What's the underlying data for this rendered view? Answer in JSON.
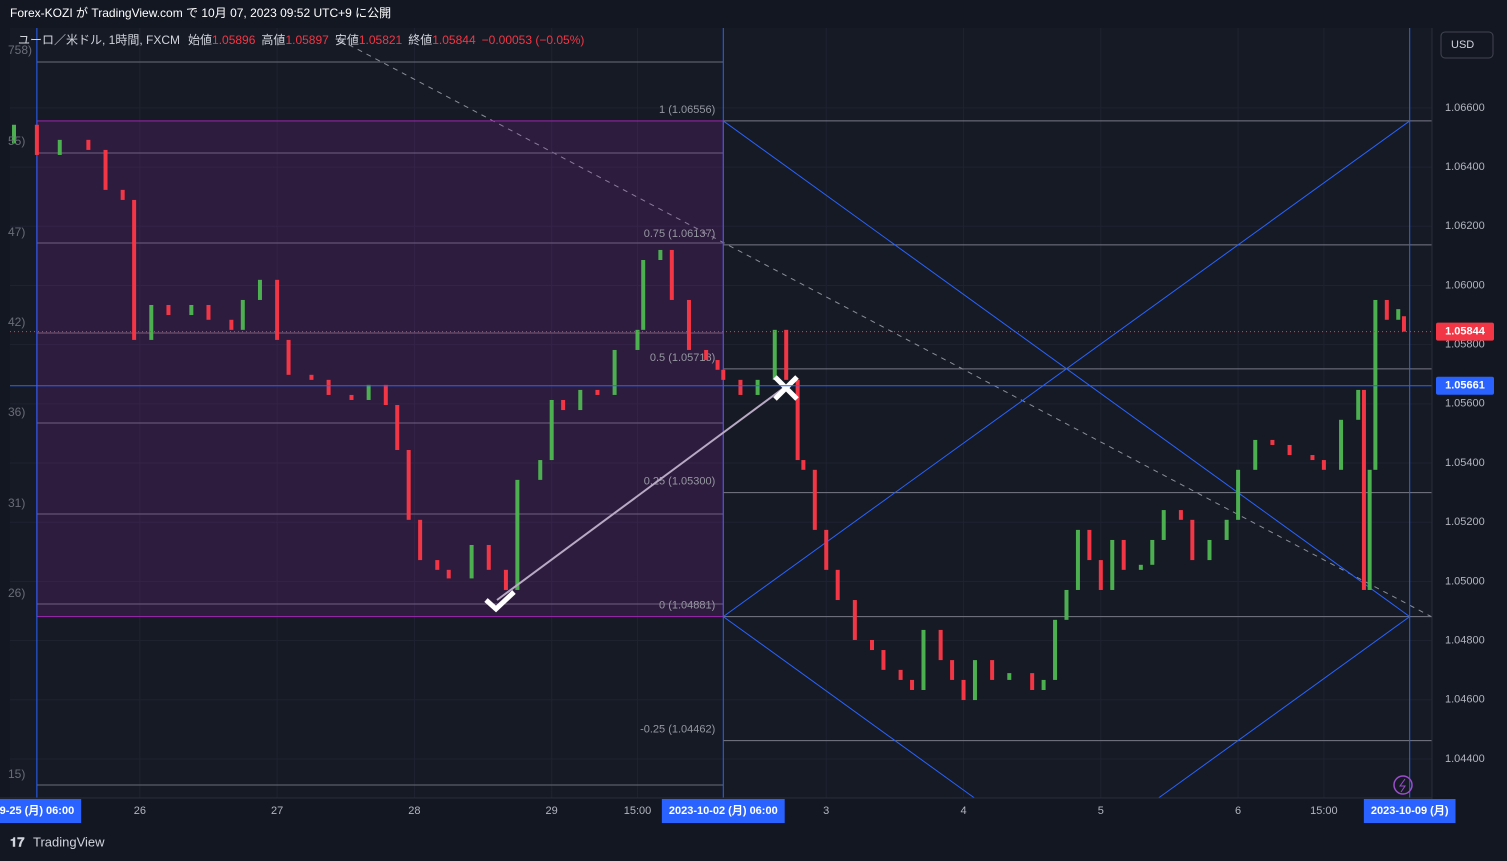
{
  "header": "Forex-KOZI が TradingView.com で 10月 07, 2023 09:52 UTC+9 に公開",
  "currency_button": "USD",
  "footer_brand": "TradingView",
  "left_labels": [
    "758)",
    "55)",
    "47)",
    "42)",
    "36)",
    "31)",
    "26)",
    "15)"
  ],
  "chart_data": {
    "type": "candlestick",
    "legend": {
      "symbol": "ユーロ／米ドル, 1時間, FXCM",
      "open_label": "始値",
      "open": 1.05896,
      "high_label": "高値",
      "high": 1.05897,
      "low_label": "安値",
      "low": 1.05821,
      "close_label": "終値",
      "close": 1.05844,
      "change": "−0.00053 (−0.05%)"
    },
    "up_color": "#4caf50",
    "down_color": "#f23645",
    "x": [
      -4,
      0,
      4,
      9,
      12,
      15,
      17,
      20,
      23,
      27,
      30,
      34,
      36,
      39,
      42,
      44,
      48,
      51,
      55,
      58,
      61,
      63,
      65,
      67,
      70,
      72,
      76,
      79,
      82,
      84,
      88,
      90,
      92,
      95,
      98,
      101,
      105,
      106,
      109,
      111,
      114,
      117,
      119,
      120,
      123,
      126,
      129,
      131,
      133,
      134,
      136,
      138,
      140,
      143,
      146,
      148,
      151,
      153,
      155,
      158,
      160,
      162,
      164,
      167,
      170,
      174,
      176,
      178,
      180,
      182,
      184,
      186,
      188,
      190,
      193,
      195,
      197,
      200,
      202,
      205,
      208,
      210,
      213,
      216,
      219,
      223,
      225,
      228,
      231,
      232,
      233,
      234,
      236,
      238,
      239
    ],
    "open": [
      1.0648,
      1.06543,
      1.06441,
      1.06492,
      1.06458,
      1.06323,
      1.06289,
      1.05816,
      1.05934,
      1.059,
      1.05934,
      1.05884,
      1.0585,
      1.05951,
      1.06019,
      1.05816,
      1.05698,
      1.05681,
      1.0563,
      1.05613,
      1.05664,
      1.05596,
      1.05444,
      1.05208,
      1.05072,
      1.05039,
      1.0501,
      1.05123,
      1.05039,
      1.04971,
      1.05343,
      1.0541,
      1.05613,
      1.05579,
      1.05647,
      1.0563,
      1.05782,
      1.0585,
      1.06086,
      1.0612,
      1.05951,
      1.05782,
      1.05748,
      1.05715,
      1.05681,
      1.0563,
      1.05681,
      1.0585,
      1.05681,
      1.0541,
      1.05377,
      1.05174,
      1.05039,
      1.04937,
      1.04802,
      1.04768,
      1.04701,
      1.04667,
      1.04633,
      1.04836,
      1.04734,
      1.04667,
      1.04599,
      1.04734,
      1.04667,
      1.0469,
      1.04633,
      1.04667,
      1.0487,
      1.04971,
      1.05174,
      1.05072,
      1.04971,
      1.0514,
      1.05039,
      1.05056,
      1.0514,
      1.05241,
      1.05208,
      1.05072,
      1.0514,
      1.05208,
      1.05377,
      1.05478,
      1.05461,
      1.05427,
      1.0541,
      1.05377,
      1.05546,
      1.05647,
      1.04971,
      1.05377,
      1.05951,
      1.05884,
      1.05896
    ],
    "close": [
      1.06543,
      1.06441,
      1.06492,
      1.06458,
      1.06323,
      1.06289,
      1.05816,
      1.05934,
      1.059,
      1.05934,
      1.05884,
      1.0585,
      1.05951,
      1.06019,
      1.05816,
      1.05698,
      1.05681,
      1.0563,
      1.05613,
      1.05664,
      1.05596,
      1.05444,
      1.05208,
      1.05072,
      1.05039,
      1.0501,
      1.05123,
      1.05039,
      1.04971,
      1.05343,
      1.0541,
      1.05613,
      1.05579,
      1.05647,
      1.0563,
      1.05782,
      1.0585,
      1.06086,
      1.0612,
      1.05951,
      1.05782,
      1.05748,
      1.05715,
      1.05681,
      1.0563,
      1.05681,
      1.0585,
      1.05681,
      1.0541,
      1.05377,
      1.05174,
      1.05039,
      1.04937,
      1.04802,
      1.04768,
      1.04701,
      1.04667,
      1.04633,
      1.04836,
      1.04734,
      1.04667,
      1.04599,
      1.04734,
      1.04667,
      1.0469,
      1.04633,
      1.04667,
      1.0487,
      1.04971,
      1.05174,
      1.05072,
      1.04971,
      1.0514,
      1.05039,
      1.05056,
      1.0514,
      1.05241,
      1.05208,
      1.05072,
      1.0514,
      1.05208,
      1.05377,
      1.05478,
      1.05461,
      1.05427,
      1.0541,
      1.05377,
      1.05546,
      1.05647,
      1.04971,
      1.05377,
      1.05951,
      1.05884,
      1.0592,
      1.05844
    ],
    "xlim": [
      -4.7,
      243.9
    ],
    "ylim": [
      1.04268,
      1.0687
    ],
    "yticks": [
      {
        "value": 1.066,
        "label": "1.06600"
      },
      {
        "value": 1.064,
        "label": "1.06400"
      },
      {
        "value": 1.062,
        "label": "1.06200"
      },
      {
        "value": 1.06,
        "label": "1.06000"
      },
      {
        "value": 1.058,
        "label": "1.05800"
      },
      {
        "value": 1.056,
        "label": "1.05600"
      },
      {
        "value": 1.054,
        "label": "1.05400"
      },
      {
        "value": 1.052,
        "label": "1.05200"
      },
      {
        "value": 1.05,
        "label": "1.05000"
      },
      {
        "value": 1.048,
        "label": "1.04800"
      },
      {
        "value": 1.046,
        "label": "1.04600"
      },
      {
        "value": 1.044,
        "label": "1.04400"
      }
    ],
    "xticks": [
      {
        "value": 18,
        "label": "26"
      },
      {
        "value": 42,
        "label": "27"
      },
      {
        "value": 66,
        "label": "28"
      },
      {
        "value": 90,
        "label": "29"
      },
      {
        "value": 105,
        "label": "15:00"
      },
      {
        "value": 138,
        "label": "3"
      },
      {
        "value": 162,
        "label": "4"
      },
      {
        "value": 186,
        "label": "5"
      },
      {
        "value": 210,
        "label": "6"
      },
      {
        "value": 225,
        "label": "15:00"
      }
    ],
    "x_markers": [
      {
        "value": 0,
        "label": "9-25 (月)   06:00"
      },
      {
        "value": 120,
        "label": "2023-10-02 (月)   06:00"
      },
      {
        "value": 240,
        "label": "2023-10-09 (月)"
      }
    ],
    "price_lines": [
      {
        "value": 1.05844,
        "label": "1.05844",
        "color": "#f23645"
      },
      {
        "value": 1.05661,
        "label": "1.05661",
        "color": "#2962ff"
      }
    ],
    "fib_levels": [
      {
        "value": 1.06556,
        "label": "1 (1.06556)"
      },
      {
        "value": 1.06137,
        "label": "0.75 (1.06137)"
      },
      {
        "value": 1.05718,
        "label": "0.5 (1.05718)"
      },
      {
        "value": 1.053,
        "label": "0.25 (1.05300)"
      },
      {
        "value": 1.04881,
        "label": "0 (1.04881)"
      },
      {
        "value": 1.04462,
        "label": "-0.25 (1.04462)"
      }
    ],
    "grid": true
  }
}
